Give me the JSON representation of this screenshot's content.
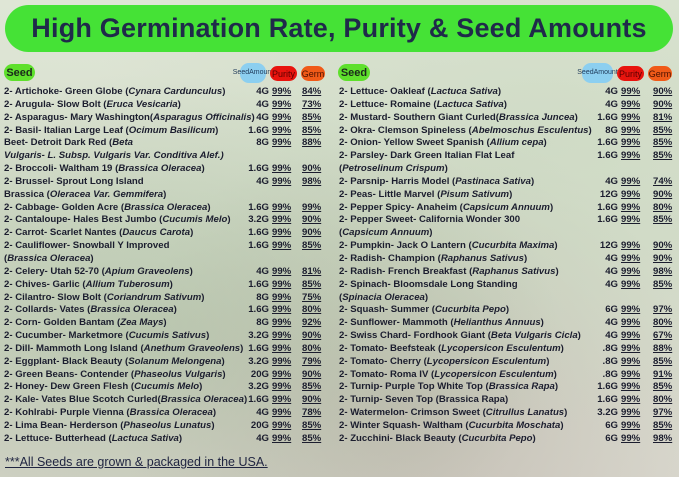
{
  "title": "High Germination Rate, Purity & Seed Amounts",
  "headers": {
    "seed": "Seed",
    "amount_line1": "Seed",
    "amount_line2": "Amount",
    "purity": "Purity",
    "germ": "Germ"
  },
  "colors": {
    "banner": "#45e236",
    "seed_pill": "#5ee02c",
    "amount_pill": "#8ccff0",
    "purity_pill": "#e8140e",
    "germ_pill": "#f05a18"
  },
  "columns": [
    [
      {
        "lines": [
          [
            [
              "2- Artichoke- Green Globe (",
              0
            ],
            [
              "Cynara Cardunculus",
              1
            ],
            [
              ")",
              0
            ]
          ]
        ],
        "amount": "4G",
        "purity": "99%",
        "germ": "84%"
      },
      {
        "lines": [
          [
            [
              "2- Arugula- Slow Bolt (",
              0
            ],
            [
              "Eruca Vesicaria",
              1
            ],
            [
              ")",
              0
            ]
          ]
        ],
        "amount": "4G",
        "purity": "99%",
        "germ": "73%"
      },
      {
        "lines": [
          [
            [
              "2- Asparagus- Mary Washington(",
              0
            ],
            [
              "Asparagus Officinalis",
              1
            ],
            [
              ")",
              0
            ]
          ]
        ],
        "amount": "4G",
        "purity": "99%",
        "germ": "85%"
      },
      {
        "lines": [
          [
            [
              "2- Basil- Italian Large Leaf (",
              0
            ],
            [
              "Ocimum Basilicum",
              1
            ],
            [
              ")",
              0
            ]
          ]
        ],
        "amount": "1.6G",
        "purity": "99%",
        "germ": "85%"
      },
      {
        "lines": [
          [
            [
              "Beet- Detroit Dark Red (",
              0
            ],
            [
              "Beta",
              1
            ]
          ],
          [
            [
              "Vulgaris- L. Subsp. Vulgaris Var. Conditiva Alef.)",
              1
            ]
          ]
        ],
        "amount": "8G",
        "purity": "99%",
        "germ": "88%"
      },
      {
        "lines": [
          [
            [
              "2- Broccoli- Waltham 19 (",
              0
            ],
            [
              "Brassica Oleracea",
              1
            ],
            [
              ")",
              0
            ]
          ]
        ],
        "amount": "1.6G",
        "purity": "99%",
        "germ": "90%"
      },
      {
        "lines": [
          [
            [
              "2- Brussel- Sprout Long Island",
              0
            ]
          ],
          [
            [
              "Brassica (",
              0
            ],
            [
              "Oleracea Var. Gemmifera",
              1
            ],
            [
              ")",
              0
            ]
          ]
        ],
        "amount": "4G",
        "purity": "99%",
        "germ": "98%"
      },
      {
        "lines": [
          [
            [
              "2- Cabbage- Golden Acre (",
              0
            ],
            [
              "Brassica Oleracea",
              1
            ],
            [
              ")",
              0
            ]
          ]
        ],
        "amount": "1.6G",
        "purity": "99%",
        "germ": "99%"
      },
      {
        "lines": [
          [
            [
              "2- Cantaloupe- Hales Best Jumbo (",
              0
            ],
            [
              "Cucumis Melo",
              1
            ],
            [
              ")",
              0
            ]
          ]
        ],
        "amount": "3.2G",
        "purity": "99%",
        "germ": "90%"
      },
      {
        "lines": [
          [
            [
              "2- Carrot- Scarlet Nantes (",
              0
            ],
            [
              "Daucus Carota",
              1
            ],
            [
              ")",
              0
            ]
          ]
        ],
        "amount": "1.6G",
        "purity": "99%",
        "germ": "90%"
      },
      {
        "lines": [
          [
            [
              "2- Cauliflower- Snowball Y Improved",
              0
            ]
          ],
          [
            [
              "(",
              0
            ],
            [
              "Brassica Oleracea",
              1
            ],
            [
              ")",
              0
            ]
          ]
        ],
        "amount": "1.6G",
        "purity": "99%",
        "germ": "85%"
      },
      {
        "lines": [
          [
            [
              "2- Celery- Utah 52-70 (",
              0
            ],
            [
              "Apium Graveolens",
              1
            ],
            [
              ")",
              0
            ]
          ]
        ],
        "amount": "4G",
        "purity": "99%",
        "germ": "81%"
      },
      {
        "lines": [
          [
            [
              "2- Chives- Garlic (",
              0
            ],
            [
              "Allium Tuberosum",
              1
            ],
            [
              ")",
              0
            ]
          ]
        ],
        "amount": "1.6G",
        "purity": "99%",
        "germ": "85%"
      },
      {
        "lines": [
          [
            [
              "2- Cilantro- Slow Bolt (",
              0
            ],
            [
              "Coriandrum Sativum",
              1
            ],
            [
              ")",
              0
            ]
          ]
        ],
        "amount": "8G",
        "purity": "99%",
        "germ": "75%"
      },
      {
        "lines": [
          [
            [
              "2- Collards- Vates (",
              0
            ],
            [
              "Brassica Oleracea",
              1
            ],
            [
              ")",
              0
            ]
          ]
        ],
        "amount": "1.6G",
        "purity": "99%",
        "germ": "80%"
      },
      {
        "lines": [
          [
            [
              "2- Corn- Golden Bantam (",
              0
            ],
            [
              "Zea Mays",
              1
            ],
            [
              ")",
              0
            ]
          ]
        ],
        "amount": "8G",
        "purity": "99%",
        "germ": "92%"
      },
      {
        "lines": [
          [
            [
              "2- Cucumber- Marketmore (",
              0
            ],
            [
              "Cucumis Sativus",
              1
            ],
            [
              ")",
              0
            ]
          ]
        ],
        "amount": "3.2G",
        "purity": "99%",
        "germ": "90%"
      },
      {
        "lines": [
          [
            [
              "2- Dill- Mammoth Long Island (",
              0
            ],
            [
              "Anethum Graveolens",
              1
            ],
            [
              ")",
              0
            ]
          ]
        ],
        "amount": "1.6G",
        "purity": "99%",
        "germ": "80%"
      },
      {
        "lines": [
          [
            [
              "2- Eggplant- Black Beauty (",
              0
            ],
            [
              "Solanum Melongena",
              1
            ],
            [
              ")",
              0
            ]
          ]
        ],
        "amount": "3.2G",
        "purity": "99%",
        "germ": "79%"
      },
      {
        "lines": [
          [
            [
              "2- Green Beans- Contender (",
              0
            ],
            [
              "Phaseolus Vulgaris",
              1
            ],
            [
              ")",
              0
            ]
          ]
        ],
        "amount": "20G",
        "purity": "99%",
        "germ": "90%"
      },
      {
        "lines": [
          [
            [
              "2- Honey- Dew Green Flesh (",
              0
            ],
            [
              "Cucumis Melo",
              1
            ],
            [
              ")",
              0
            ]
          ]
        ],
        "amount": "3.2G",
        "purity": "99%",
        "germ": "85%"
      },
      {
        "lines": [
          [
            [
              "2- Kale- Vates Blue Scotch Curled(",
              0
            ],
            [
              "Brassica Oleracea",
              1
            ],
            [
              ")",
              0
            ]
          ]
        ],
        "amount": "1.6G",
        "purity": "99%",
        "germ": "90%"
      },
      {
        "lines": [
          [
            [
              "2- Kohlrabi- Purple Vienna (",
              0
            ],
            [
              "Brassica Oleracea",
              1
            ],
            [
              ")",
              0
            ]
          ]
        ],
        "amount": "4G",
        "purity": "99%",
        "germ": "78%"
      },
      {
        "lines": [
          [
            [
              "2- Lima Bean- Herderson (",
              0
            ],
            [
              "Phaseolus Lunatus",
              1
            ],
            [
              ")",
              0
            ]
          ]
        ],
        "amount": "20G",
        "purity": "99%",
        "germ": "85%"
      },
      {
        "lines": [
          [
            [
              "2- Lettuce- Butterhead (",
              0
            ],
            [
              "Lactuca Sativa",
              1
            ],
            [
              ")",
              0
            ]
          ]
        ],
        "amount": "4G",
        "purity": "99%",
        "germ": "85%"
      }
    ],
    [
      {
        "lines": [
          [
            [
              "2- Lettuce- Oakleaf (",
              0
            ],
            [
              "Lactuca Sativa",
              1
            ],
            [
              ")",
              0
            ]
          ]
        ],
        "amount": "4G",
        "purity": "99%",
        "germ": "90%"
      },
      {
        "lines": [
          [
            [
              "2- Lettuce- Romaine (",
              0
            ],
            [
              "Lactuca Sativa",
              1
            ],
            [
              ")",
              0
            ]
          ]
        ],
        "amount": "4G",
        "purity": "99%",
        "germ": "90%"
      },
      {
        "lines": [
          [
            [
              "2- Mustard-  Southern Giant Curled(",
              0
            ],
            [
              "Brassica Juncea",
              1
            ],
            [
              ")",
              0
            ]
          ]
        ],
        "amount": "1.6G",
        "purity": "99%",
        "germ": "81%"
      },
      {
        "lines": [
          [
            [
              "2- Okra- Clemson Spineless (",
              0
            ],
            [
              "Abelmoschus Esculentus",
              1
            ],
            [
              ")",
              0
            ]
          ]
        ],
        "amount": "8G",
        "purity": "99%",
        "germ": "85%"
      },
      {
        "lines": [
          [
            [
              "2- Onion- Yellow Sweet Spanish (",
              0
            ],
            [
              "Allium cepa",
              1
            ],
            [
              ")",
              0
            ]
          ]
        ],
        "amount": "1.6G",
        "purity": "99%",
        "germ": "85%"
      },
      {
        "lines": [
          [
            [
              "2- Parsley- Dark Green Italian Flat Leaf",
              0
            ]
          ],
          [
            [
              "(",
              0
            ],
            [
              "Petroselinum Crispum",
              1
            ],
            [
              ")",
              0
            ]
          ]
        ],
        "amount": "1.6G",
        "purity": "99%",
        "germ": "85%"
      },
      {
        "lines": [
          [
            [
              "2- Parsnip- Harris Model (",
              0
            ],
            [
              "Pastinaca Sativa",
              1
            ],
            [
              ")",
              0
            ]
          ]
        ],
        "amount": "4G",
        "purity": "99%",
        "germ": "74%"
      },
      {
        "lines": [
          [
            [
              "2- Peas- Little Marvel (",
              0
            ],
            [
              "Pisum Sativum",
              1
            ],
            [
              ")",
              0
            ]
          ]
        ],
        "amount": "12G",
        "purity": "99%",
        "germ": "90%"
      },
      {
        "lines": [
          [
            [
              "2- Pepper Spicy- Anaheim (",
              0
            ],
            [
              "Capsicum Annuum",
              1
            ],
            [
              ")",
              0
            ]
          ]
        ],
        "amount": "1.6G",
        "purity": "99%",
        "germ": "80%"
      },
      {
        "lines": [
          [
            [
              "2- Pepper Sweet- California Wonder 300",
              0
            ]
          ],
          [
            [
              "(",
              0
            ],
            [
              "Capsicum Annuum",
              1
            ],
            [
              ")",
              0
            ]
          ]
        ],
        "amount": "1.6G",
        "purity": "99%",
        "germ": "85%"
      },
      {
        "lines": [
          [
            [
              "2- Pumpkin- Jack O Lantern (",
              0
            ],
            [
              "Cucurbita Maxima",
              1
            ],
            [
              ")",
              0
            ]
          ]
        ],
        "amount": "12G",
        "purity": "99%",
        "germ": "90%"
      },
      {
        "lines": [
          [
            [
              "2- Radish- Champion (",
              0
            ],
            [
              "Raphanus Sativus",
              1
            ],
            [
              ")",
              0
            ]
          ]
        ],
        "amount": "4G",
        "purity": "99%",
        "germ": "90%"
      },
      {
        "lines": [
          [
            [
              "2- Radish- French Breakfast (",
              0
            ],
            [
              "Raphanus Sativus",
              1
            ],
            [
              ")",
              0
            ]
          ]
        ],
        "amount": "4G",
        "purity": "99%",
        "germ": "98%"
      },
      {
        "lines": [
          [
            [
              "2- Spinach- Bloomsdale Long Standing",
              0
            ]
          ],
          [
            [
              "(",
              0
            ],
            [
              "Spinacia Oleracea",
              1
            ],
            [
              ")",
              0
            ]
          ]
        ],
        "amount": "4G",
        "purity": "99%",
        "germ": "85%"
      },
      {
        "lines": [
          [
            [
              "2- Squash- Summer (",
              0
            ],
            [
              "Cucurbita Pepo",
              1
            ],
            [
              ")",
              0
            ]
          ]
        ],
        "amount": "6G",
        "purity": "99%",
        "germ": "97%"
      },
      {
        "lines": [
          [
            [
              "2- Sunflower- Mammoth (",
              0
            ],
            [
              "Helianthus Annuus",
              1
            ],
            [
              ")",
              0
            ]
          ]
        ],
        "amount": "4G",
        "purity": "99%",
        "germ": "80%"
      },
      {
        "lines": [
          [
            [
              "2- Swiss Chard- Fordhook Giant (",
              0
            ],
            [
              "Beta Vulgaris Cicla",
              1
            ],
            [
              ")",
              0
            ]
          ]
        ],
        "amount": "4G",
        "purity": "99%",
        "germ": "67%"
      },
      {
        "lines": [
          [
            [
              "2- Tomato- Beefsteak (",
              0
            ],
            [
              "Lycopersicon Esculentum",
              1
            ],
            [
              ")",
              0
            ]
          ]
        ],
        "amount": ".8G",
        "purity": "99%",
        "germ": "88%"
      },
      {
        "lines": [
          [
            [
              "2- Tomato- Cherry (",
              0
            ],
            [
              "Lycopersicon Esculentum",
              1
            ],
            [
              ")",
              0
            ]
          ]
        ],
        "amount": ".8G",
        "purity": "99%",
        "germ": "85%"
      },
      {
        "lines": [
          [
            [
              "2- Tomato- Roma IV  (",
              0
            ],
            [
              "Lycopersicon Esculentum",
              1
            ],
            [
              ")",
              0
            ]
          ]
        ],
        "amount": ".8G",
        "purity": "99%",
        "germ": "91%"
      },
      {
        "lines": [
          [
            [
              "2- Turnip- Purple Top White Top (",
              0
            ],
            [
              "Brassica Rapa",
              1
            ],
            [
              ")",
              0
            ]
          ]
        ],
        "amount": "1.6G",
        "purity": "99%",
        "germ": "85%"
      },
      {
        "lines": [
          [
            [
              "2- Turnip- Seven Top (Brassica Rapa)",
              0
            ]
          ]
        ],
        "amount": "1.6G",
        "purity": "99%",
        "germ": "80%"
      },
      {
        "lines": [
          [
            [
              "2- Watermelon- Crimson Sweet (",
              0
            ],
            [
              "Citrullus Lanatus",
              1
            ],
            [
              ")",
              0
            ]
          ]
        ],
        "amount": "3.2G",
        "purity": "99%",
        "germ": "97%"
      },
      {
        "lines": [
          [
            [
              "2- Winter Squash- Waltham (",
              0
            ],
            [
              "Cucurbita Moschata",
              1
            ],
            [
              ")",
              0
            ]
          ]
        ],
        "amount": "6G",
        "purity": "99%",
        "germ": "85%"
      },
      {
        "lines": [
          [
            [
              "2- Zucchini-  Black Beauty (",
              0
            ],
            [
              "Cucurbita Pepo",
              1
            ],
            [
              ")",
              0
            ]
          ]
        ],
        "amount": "6G",
        "purity": "99%",
        "germ": "98%"
      }
    ]
  ],
  "footnote": "***All Seeds are grown & packaged in the USA."
}
